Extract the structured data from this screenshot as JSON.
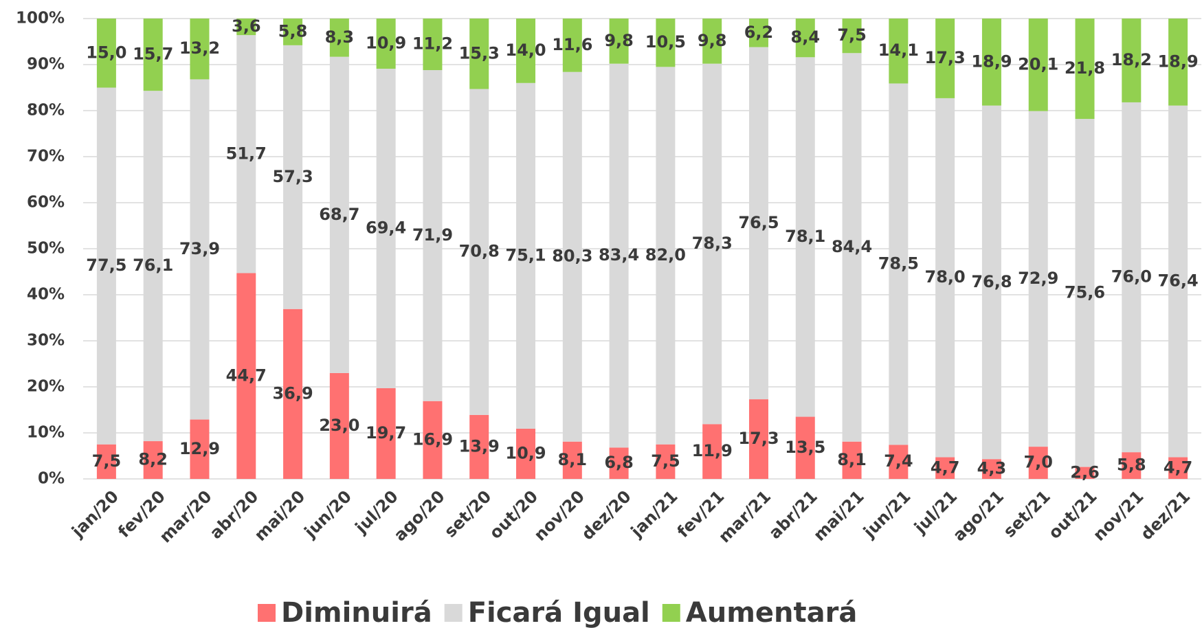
{
  "chart_data": {
    "type": "stacked_bar",
    "categories": [
      "jan/20",
      "fev/20",
      "mar/20",
      "abr/20",
      "mai/20",
      "jun/20",
      "jul/20",
      "ago/20",
      "set/20",
      "out/20",
      "nov/20",
      "dez/20",
      "jan/21",
      "fev/21",
      "mar/21",
      "abr/21",
      "mai/21",
      "jun/21",
      "jul/21",
      "ago/21",
      "set/21",
      "out/21",
      "nov/21",
      "dez/21"
    ],
    "series": [
      {
        "name": "Diminuirá",
        "color": "#ff7171",
        "values": [
          7.5,
          8.2,
          12.9,
          44.7,
          36.9,
          23.0,
          19.7,
          16.9,
          13.9,
          10.9,
          8.1,
          6.8,
          7.5,
          11.9,
          17.3,
          13.5,
          8.1,
          7.4,
          4.7,
          4.3,
          7.0,
          2.6,
          5.8,
          4.7
        ],
        "value_labels": [
          "7,5",
          "8,2",
          "12,9",
          "44,7",
          "36,9",
          "23,0",
          "19,7",
          "16,9",
          "13,9",
          "10,9",
          "8,1",
          "6,8",
          "7,5",
          "11,9",
          "17,3",
          "13,5",
          "8,1",
          "7,4",
          "4,7",
          "4,3",
          "7,0",
          "2,6",
          "5,8",
          "4,7"
        ]
      },
      {
        "name": "Ficará Igual",
        "color": "#d9d9d9",
        "values": [
          77.5,
          76.1,
          73.9,
          51.7,
          57.3,
          68.7,
          69.4,
          71.9,
          70.8,
          75.1,
          80.3,
          83.4,
          82.0,
          78.3,
          76.5,
          78.1,
          84.4,
          78.5,
          78.0,
          76.8,
          72.9,
          75.6,
          76.0,
          76.4
        ],
        "value_labels": [
          "77,5",
          "76,1",
          "73,9",
          "51,7",
          "57,3",
          "68,7",
          "69,4",
          "71,9",
          "70,8",
          "75,1",
          "80,3",
          "83,4",
          "82,0",
          "78,3",
          "76,5",
          "78,1",
          "84,4",
          "78,5",
          "78,0",
          "76,8",
          "72,9",
          "75,6",
          "76,0",
          "76,4"
        ]
      },
      {
        "name": "Aumentará",
        "color": "#92d050",
        "values": [
          15.0,
          15.7,
          13.2,
          3.6,
          5.8,
          8.3,
          10.9,
          11.2,
          15.3,
          14.0,
          11.6,
          9.8,
          10.5,
          9.8,
          6.2,
          8.4,
          7.5,
          14.1,
          17.3,
          18.9,
          20.1,
          21.8,
          18.2,
          18.9
        ],
        "value_labels": [
          "15,0",
          "15,7",
          "13,2",
          "3,6",
          "5,8",
          "8,3",
          "10,9",
          "11,2",
          "15,3",
          "14,0",
          "11,6",
          "9,8",
          "10,5",
          "9,8",
          "6,2",
          "8,4",
          "7,5",
          "14,1",
          "17,3",
          "18,9",
          "20,1",
          "21,8",
          "18,2",
          "18,9"
        ]
      }
    ],
    "ylim": [
      0,
      100
    ],
    "yticks": [
      {
        "value": 0,
        "label": "0%"
      },
      {
        "value": 10,
        "label": "10%"
      },
      {
        "value": 20,
        "label": "20%"
      },
      {
        "value": 30,
        "label": "30%"
      },
      {
        "value": 40,
        "label": "40%"
      },
      {
        "value": 50,
        "label": "50%"
      },
      {
        "value": 60,
        "label": "60%"
      },
      {
        "value": 70,
        "label": "70%"
      },
      {
        "value": 80,
        "label": "80%"
      },
      {
        "value": 90,
        "label": "90%"
      },
      {
        "value": 100,
        "label": "100%"
      }
    ],
    "grid": true,
    "legend": "bottom"
  }
}
